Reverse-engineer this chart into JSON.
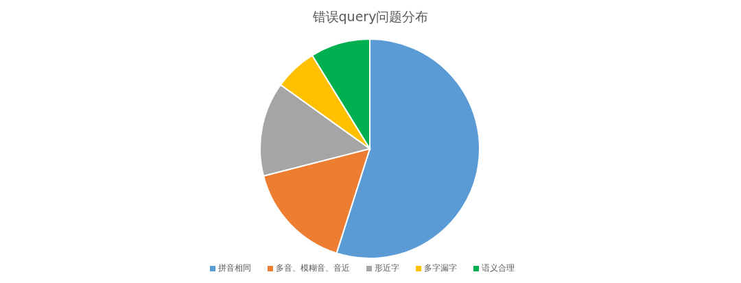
{
  "chart_data": {
    "type": "pie",
    "title": "错误query问题分布",
    "categories": [
      "拼音相同",
      "多音、模糊音、音近",
      "形近字",
      "多字漏字",
      "语义合理"
    ],
    "values": [
      54.9,
      16.1,
      13.9,
      6.3,
      8.8
    ],
    "colors": [
      "#5b9bd5",
      "#ed7d31",
      "#a5a5a5",
      "#ffc000",
      "#00b050"
    ],
    "legend": "bottom"
  }
}
